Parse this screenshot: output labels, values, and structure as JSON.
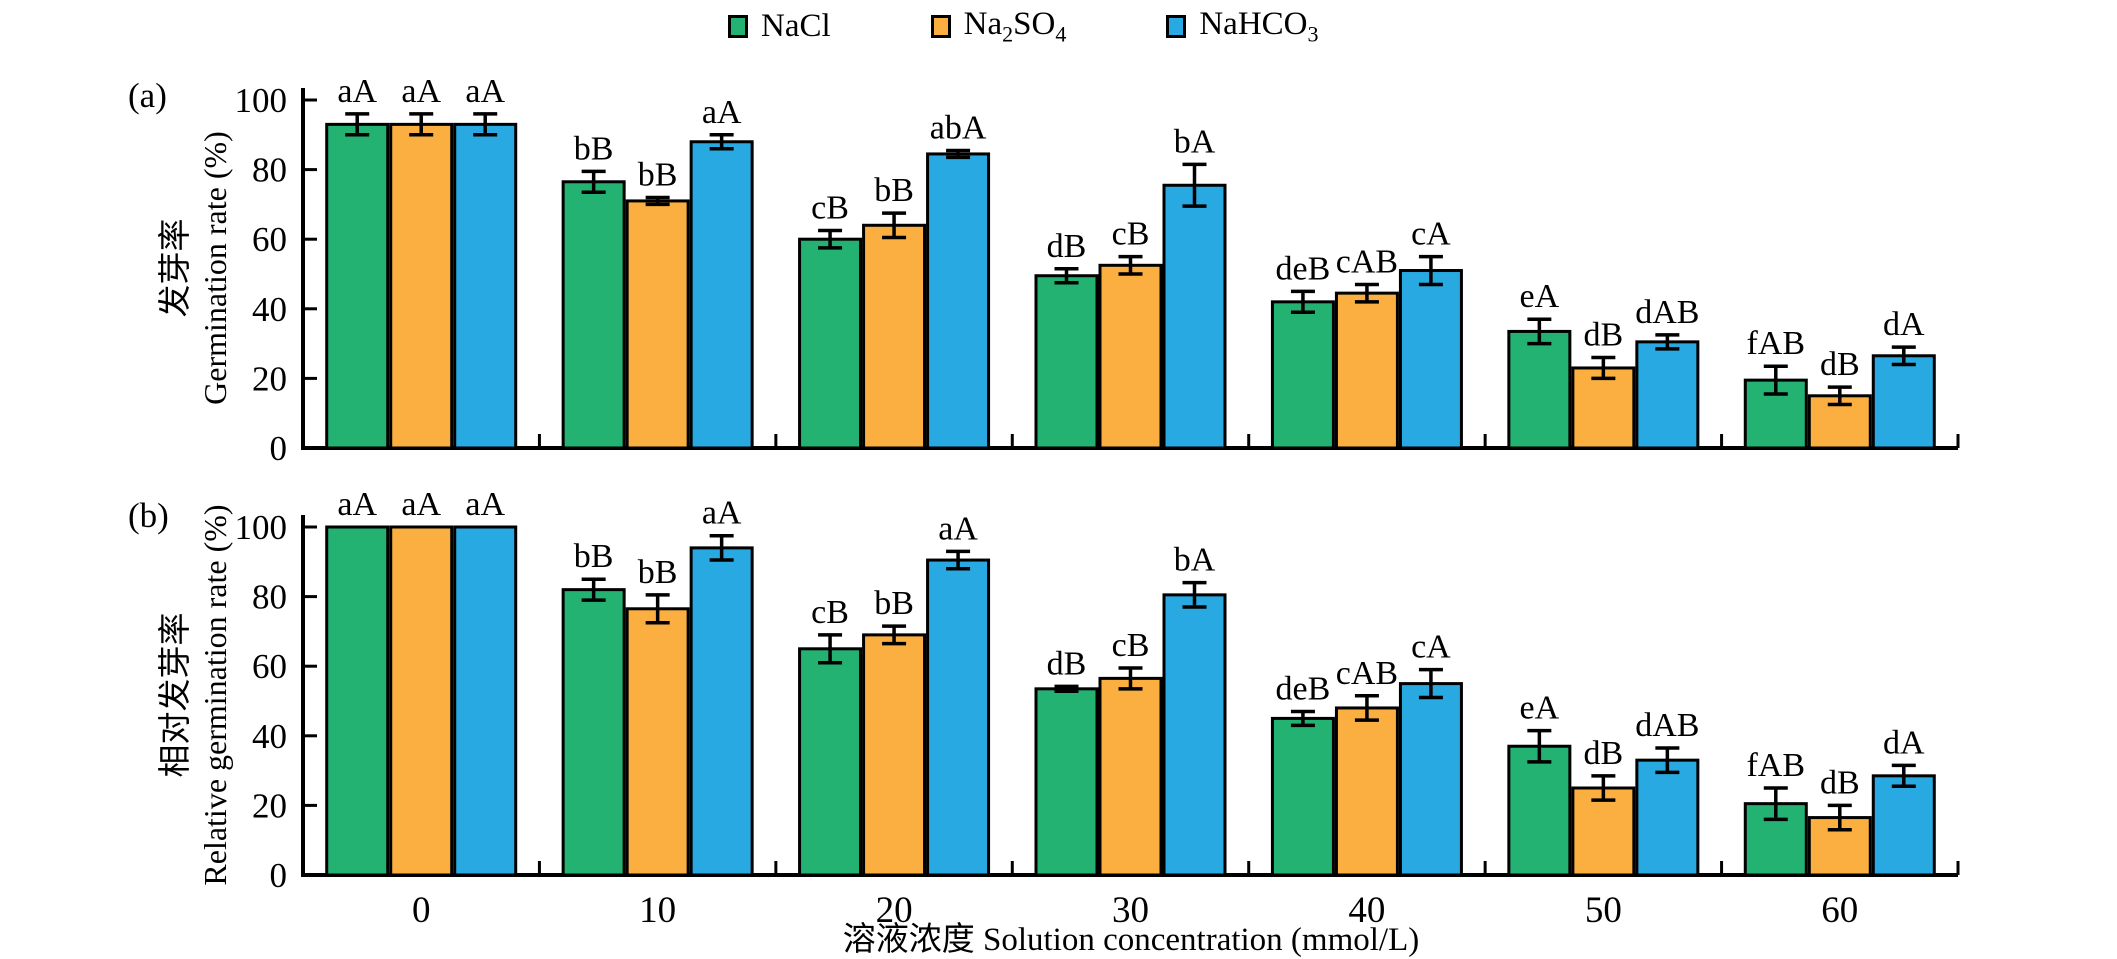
{
  "legend": {
    "items": [
      {
        "name": "NaCl",
        "color": "#24B273",
        "segments": [
          {
            "t": "NaCl"
          }
        ]
      },
      {
        "name": "Na2SO4",
        "color": "#FAAF40",
        "segments": [
          {
            "t": "Na"
          },
          {
            "t": "2",
            "sub": true
          },
          {
            "t": "SO"
          },
          {
            "t": "4",
            "sub": true
          }
        ]
      },
      {
        "name": "NaHCO3",
        "color": "#29A9E1",
        "segments": [
          {
            "t": "NaHCO"
          },
          {
            "t": "3",
            "sub": true
          }
        ]
      }
    ]
  },
  "xaxis": {
    "label": "溶液浓度 Solution concentration (mmol/L)"
  },
  "chart_data": [
    {
      "type": "bar",
      "panel_label": "(a)",
      "ylabel_zh": "发芽率",
      "ylabel_en": "Germination rate (%)",
      "xlabel": "溶液浓度 Solution concentration (mmol/L)",
      "categories": [
        "0",
        "10",
        "20",
        "30",
        "40",
        "50",
        "60"
      ],
      "ylim": [
        0,
        100
      ],
      "yticks": [
        0,
        20,
        40,
        60,
        80,
        100
      ],
      "legend_position": "top-center",
      "grid": false,
      "series": [
        {
          "name": "NaCl",
          "color": "#24B273",
          "values": [
            93,
            76.5,
            60,
            49.5,
            42,
            33.5,
            19.5
          ],
          "errors": [
            3,
            3,
            2.5,
            2,
            3,
            3.5,
            4
          ],
          "sig_labels": [
            "aA",
            "bB",
            "cB",
            "dB",
            "deB",
            "eA",
            "fAB"
          ]
        },
        {
          "name": "Na2SO4",
          "color": "#FAAF40",
          "values": [
            93,
            71,
            64,
            52.5,
            44.5,
            23,
            15
          ],
          "errors": [
            3,
            1,
            3.5,
            2.5,
            2.5,
            3,
            2.5
          ],
          "sig_labels": [
            "aA",
            "bB",
            "bB",
            "cB",
            "cAB",
            "dB",
            "dB"
          ]
        },
        {
          "name": "NaHCO3",
          "color": "#29A9E1",
          "values": [
            93,
            88,
            84.5,
            75.5,
            51,
            30.5,
            26.5
          ],
          "errors": [
            3,
            2,
            1,
            6,
            4,
            2,
            2.5
          ],
          "sig_labels": [
            "aA",
            "aA",
            "abA",
            "bA",
            "cA",
            "dAB",
            "dA"
          ]
        }
      ]
    },
    {
      "type": "bar",
      "panel_label": "(b)",
      "ylabel_zh": "相对发芽率",
      "ylabel_en": "Relative germination rate (%)",
      "xlabel": "溶液浓度 Solution concentration (mmol/L)",
      "categories": [
        "0",
        "10",
        "20",
        "30",
        "40",
        "50",
        "60"
      ],
      "ylim": [
        0,
        100
      ],
      "yticks": [
        0,
        20,
        40,
        60,
        80,
        100
      ],
      "grid": false,
      "series": [
        {
          "name": "NaCl",
          "color": "#24B273",
          "values": [
            100,
            82,
            65,
            53.5,
            45,
            37,
            20.5
          ],
          "errors": [
            0,
            3,
            4,
            0.7,
            2,
            4.5,
            4.5
          ],
          "sig_labels": [
            "aA",
            "bB",
            "cB",
            "dB",
            "deB",
            "eA",
            "fAB"
          ]
        },
        {
          "name": "Na2SO4",
          "color": "#FAAF40",
          "values": [
            100,
            76.5,
            69,
            56.5,
            48,
            25,
            16.5
          ],
          "errors": [
            0,
            4,
            2.5,
            3,
            3.5,
            3.5,
            3.5
          ],
          "sig_labels": [
            "aA",
            "bB",
            "bB",
            "cB",
            "cAB",
            "dB",
            "dB"
          ]
        },
        {
          "name": "NaHCO3",
          "color": "#29A9E1",
          "values": [
            100,
            94,
            90.5,
            80.5,
            55,
            33,
            28.5
          ],
          "errors": [
            0,
            3.5,
            2.5,
            3.5,
            4,
            3.5,
            3
          ],
          "sig_labels": [
            "aA",
            "aA",
            "aA",
            "bA",
            "cA",
            "dAB",
            "dA"
          ]
        }
      ]
    }
  ]
}
